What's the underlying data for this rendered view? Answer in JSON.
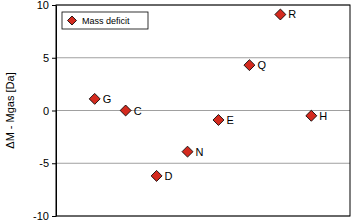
{
  "chart_data": {
    "type": "scatter",
    "y_label": "ΔM - Mgas [Da]",
    "categories": [
      "G",
      "C",
      "D",
      "N",
      "E",
      "Q",
      "R",
      "H"
    ],
    "series": [
      {
        "name": "Mass deficit",
        "color": "#d42a1e",
        "marker": "diamond",
        "values": [
          1.1,
          0.0,
          -6.2,
          -3.9,
          -0.9,
          4.3,
          9.1,
          -0.5
        ]
      }
    ],
    "ylim": [
      -10,
      10
    ],
    "yticks": [
      -10,
      -5,
      0,
      5,
      10
    ],
    "grid": true,
    "legend": "upper left",
    "tick_labels": "y"
  }
}
